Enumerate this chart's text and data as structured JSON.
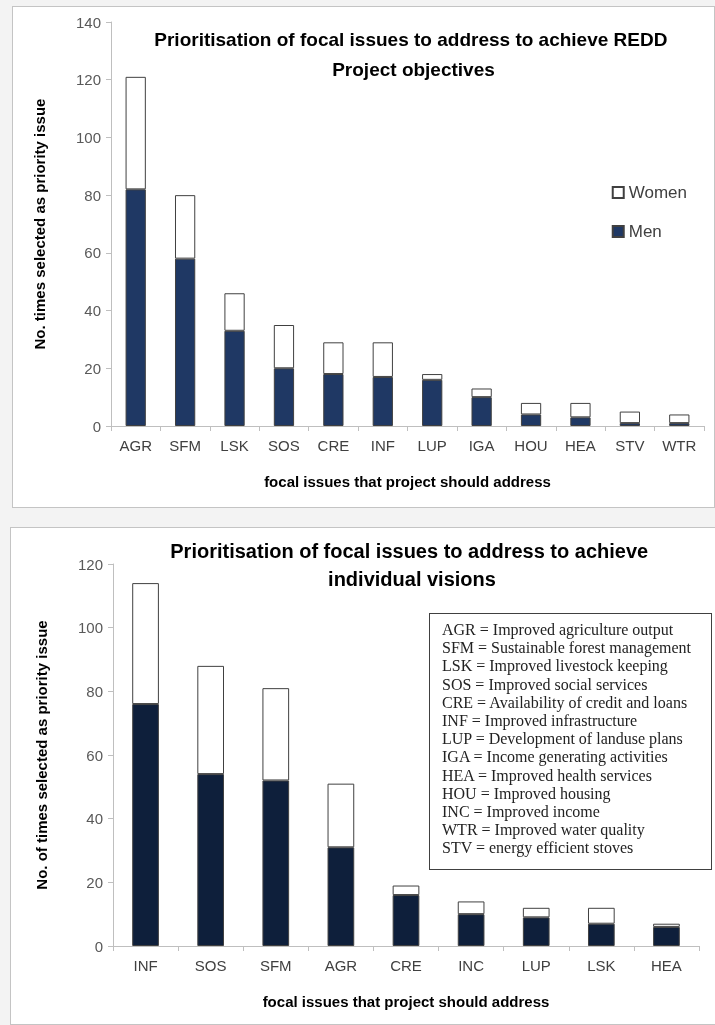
{
  "chart_data": [
    {
      "type": "bar",
      "stacked": true,
      "title": "Prioritisation of focal issues to address to achieve REDD Project objectives",
      "xlabel": "focal issues that project should address",
      "ylabel": "No. times selected as priority issue",
      "categories": [
        "AGR",
        "SFM",
        "LSK",
        "SOS",
        "CRE",
        "INF",
        "LUP",
        "IGA",
        "HOU",
        "HEA",
        "STV",
        "WTR"
      ],
      "series": [
        {
          "name": "Men",
          "color": "#1f3864",
          "values": [
            82,
            58,
            33,
            20,
            18,
            17,
            16,
            10,
            4,
            3,
            1,
            1
          ]
        },
        {
          "name": "Women",
          "color": "#ffffff",
          "values": [
            39,
            22,
            13,
            15,
            11,
            12,
            2,
            3,
            4,
            5,
            4,
            3
          ]
        }
      ],
      "ylim": [
        0,
        140
      ],
      "yticks": [
        0,
        20,
        40,
        60,
        80,
        100,
        120,
        140
      ],
      "legend": "right"
    },
    {
      "type": "bar",
      "stacked": true,
      "title": "Prioritisation of focal issues to address to achieve individual visions",
      "xlabel": "focal issues that project should address",
      "ylabel": "No. of times selected as priority issue",
      "categories": [
        "INF",
        "SOS",
        "SFM",
        "AGR",
        "CRE",
        "INC",
        "LUP",
        "LSK",
        "HEA"
      ],
      "series": [
        {
          "color": "#0e1f3b",
          "values": [
            76,
            54,
            52,
            31,
            16,
            10,
            9,
            7,
            6
          ]
        },
        {
          "color": "#ffffff",
          "values": [
            38,
            34,
            29,
            20,
            3,
            4,
            3,
            5,
            1
          ]
        }
      ],
      "ylim": [
        0,
        120
      ],
      "yticks": [
        0,
        20,
        40,
        60,
        80,
        100,
        120
      ],
      "annotations": [
        "AGR = Improved agriculture output",
        "SFM = Sustainable forest management",
        "LSK = Improved livestock keeping",
        "SOS = Improved social services",
        "CRE = Availability of credit and loans",
        "INF = Improved infrastructure",
        "LUP = Development of landuse plans",
        "IGA = Income generating activities",
        "HEA = Improved health services",
        "HOU = Improved housing",
        "INC = Improved income",
        "WTR = Improved water quality",
        "STV = energy efficient stoves"
      ]
    }
  ]
}
